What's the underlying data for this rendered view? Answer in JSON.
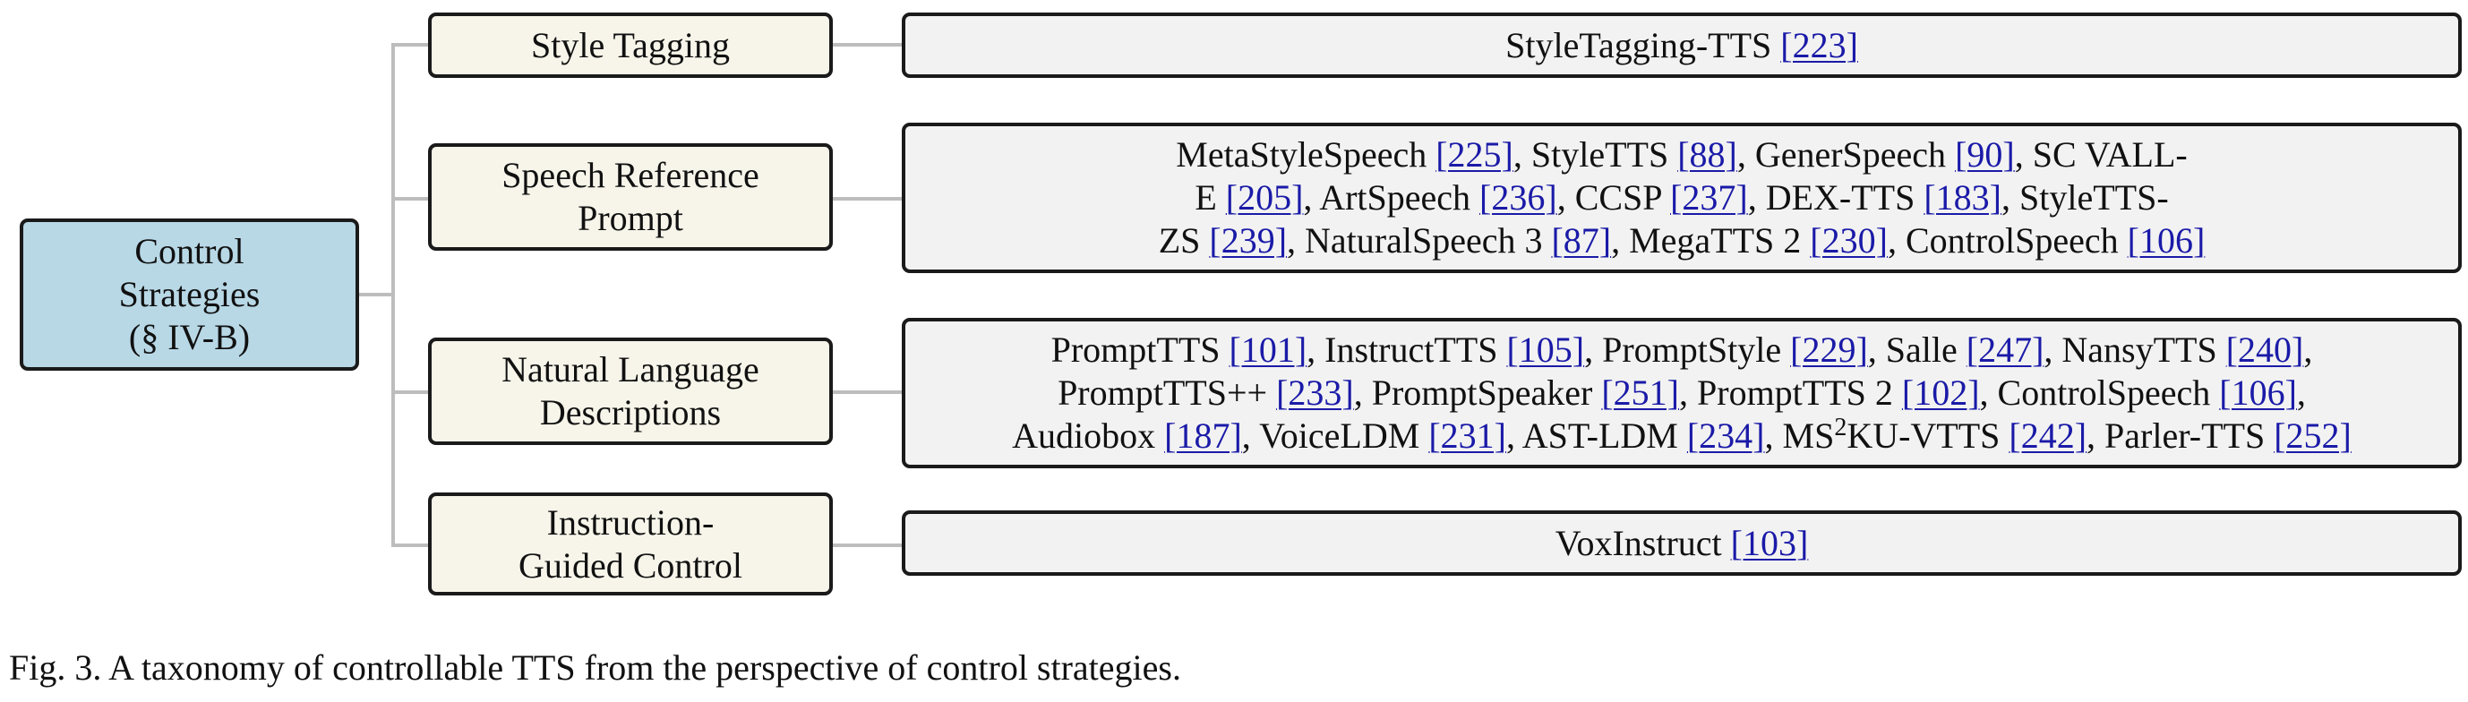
{
  "root": {
    "lines": [
      "Control",
      "Strategies",
      "(§ IV-B)"
    ]
  },
  "categories": [
    {
      "lines": [
        "Style Tagging"
      ],
      "leaf": [
        [
          {
            "t": "StyleTagging-TTS "
          },
          {
            "t": "[223]",
            "ref": true
          }
        ]
      ]
    },
    {
      "lines": [
        "Speech Reference",
        "Prompt"
      ],
      "leaf": [
        [
          {
            "t": "MetaStyleSpeech "
          },
          {
            "t": "[225]",
            "ref": true
          },
          {
            "t": ", StyleTTS "
          },
          {
            "t": "[88]",
            "ref": true
          },
          {
            "t": ", GenerSpeech "
          },
          {
            "t": "[90]",
            "ref": true
          },
          {
            "t": ", SC VALL-"
          }
        ],
        [
          {
            "t": "E "
          },
          {
            "t": "[205]",
            "ref": true
          },
          {
            "t": ", ArtSpeech "
          },
          {
            "t": "[236]",
            "ref": true
          },
          {
            "t": ", CCSP "
          },
          {
            "t": "[237]",
            "ref": true
          },
          {
            "t": ", DEX-TTS "
          },
          {
            "t": "[183]",
            "ref": true
          },
          {
            "t": ", StyleTTS-"
          }
        ],
        [
          {
            "t": "ZS "
          },
          {
            "t": "[239]",
            "ref": true
          },
          {
            "t": ", NaturalSpeech 3 "
          },
          {
            "t": "[87]",
            "ref": true
          },
          {
            "t": ", MegaTTS 2 "
          },
          {
            "t": "[230]",
            "ref": true
          },
          {
            "t": ", ControlSpeech "
          },
          {
            "t": "[106]",
            "ref": true
          }
        ]
      ]
    },
    {
      "lines": [
        "Natural Language",
        "Descriptions"
      ],
      "leaf": [
        [
          {
            "t": "PromptTTS "
          },
          {
            "t": "[101]",
            "ref": true
          },
          {
            "t": ", InstructTTS "
          },
          {
            "t": "[105]",
            "ref": true
          },
          {
            "t": ", PromptStyle "
          },
          {
            "t": "[229]",
            "ref": true
          },
          {
            "t": ", Salle "
          },
          {
            "t": "[247]",
            "ref": true
          },
          {
            "t": ", NansyTTS "
          },
          {
            "t": "[240]",
            "ref": true
          },
          {
            "t": ","
          }
        ],
        [
          {
            "t": "PromptTTS++ "
          },
          {
            "t": "[233]",
            "ref": true
          },
          {
            "t": ", PromptSpeaker "
          },
          {
            "t": "[251]",
            "ref": true
          },
          {
            "t": ", PromptTTS 2 "
          },
          {
            "t": "[102]",
            "ref": true
          },
          {
            "t": ", ControlSpeech "
          },
          {
            "t": "[106]",
            "ref": true
          },
          {
            "t": ","
          }
        ],
        [
          {
            "t": "Audiobox "
          },
          {
            "t": "[187]",
            "ref": true
          },
          {
            "t": ", VoiceLDM "
          },
          {
            "t": "[231]",
            "ref": true
          },
          {
            "t": ", AST-LDM "
          },
          {
            "t": "[234]",
            "ref": true
          },
          {
            "t": ", MS"
          },
          {
            "t": "2",
            "sup": true
          },
          {
            "t": "KU-VTTS "
          },
          {
            "t": "[242]",
            "ref": true
          },
          {
            "t": ", Parler-TTS "
          },
          {
            "t": "[252]",
            "ref": true
          }
        ]
      ]
    },
    {
      "lines": [
        "Instruction-",
        "Guided Control"
      ],
      "leaf": [
        [
          {
            "t": "VoxInstruct "
          },
          {
            "t": "[103]",
            "ref": true
          }
        ]
      ]
    }
  ],
  "caption": "Fig. 3.  A taxonomy of controllable TTS from the perspective of control strategies."
}
